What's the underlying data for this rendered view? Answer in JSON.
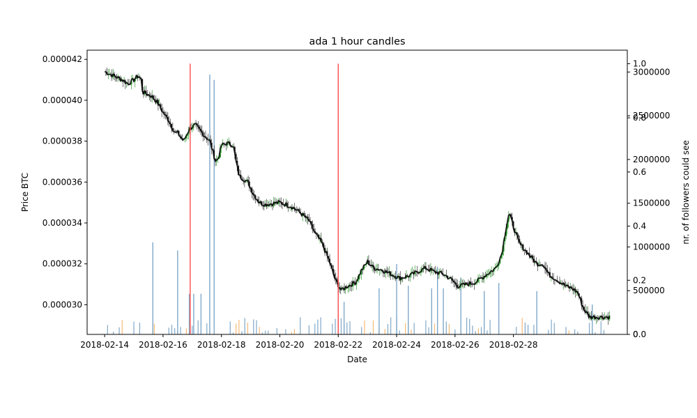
{
  "chart_data": {
    "type": "candlestick",
    "title": "ada 1 hour candles",
    "xlabel": "Date",
    "ylabel": "Price BTC",
    "ylabel_right": "nr. of followers could see",
    "x_tick_labels": [
      "2018-02-14",
      "2018-02-16",
      "2018-02-18",
      "2018-02-20",
      "2018-02-22",
      "2018-02-24",
      "2018-02-26",
      "2018-02-28"
    ],
    "xlim_days_from_2018_02_14": [
      -0.6,
      17.9
    ],
    "ylim": [
      2.855e-05,
      4.245e-05
    ],
    "y_tick_labels": [
      "0.000030",
      "0.000032",
      "0.000034",
      "0.000036",
      "0.000038",
      "0.000040",
      "0.000042"
    ],
    "y_tick_values": [
      3e-05,
      3.2e-05,
      3.4e-05,
      3.6e-05,
      3.8e-05,
      4e-05,
      4.2e-05
    ],
    "right_axis_1": {
      "ylim": [
        0,
        3250000
      ],
      "tick_labels": [
        "0",
        "500000",
        "1000000",
        "1500000",
        "2000000",
        "2500000",
        "3000000"
      ],
      "tick_values": [
        0,
        500000,
        1000000,
        1500000,
        2000000,
        2500000,
        3000000
      ]
    },
    "right_axis_2": {
      "ylim": [
        0,
        1.05
      ],
      "tick_labels": [
        "0.0",
        "0.2",
        "0.4",
        "0.6",
        "0.8",
        "1.0"
      ],
      "tick_values": [
        0.0,
        0.2,
        0.4,
        0.6,
        0.8,
        1.0
      ]
    },
    "signal_lines_days": [
      2.93,
      8.0
    ],
    "close_keypoints": [
      [
        0.0,
        4.14e-05
      ],
      [
        0.3,
        4.12e-05
      ],
      [
        0.6,
        4.1e-05
      ],
      [
        0.8,
        4.08e-05
      ],
      [
        1.0,
        4.1e-05
      ],
      [
        1.15,
        4.12e-05
      ],
      [
        1.25,
        4.1e-05
      ],
      [
        1.3,
        4.04e-05
      ],
      [
        1.6,
        4.02e-05
      ],
      [
        1.8,
        3.99e-05
      ],
      [
        2.0,
        3.94e-05
      ],
      [
        2.2,
        3.9e-05
      ],
      [
        2.4,
        3.84e-05
      ],
      [
        2.5,
        3.84e-05
      ],
      [
        2.7,
        3.8e-05
      ],
      [
        2.9,
        3.86e-05
      ],
      [
        3.1,
        3.88e-05
      ],
      [
        3.4,
        3.83e-05
      ],
      [
        3.6,
        3.8e-05
      ],
      [
        3.8,
        3.7e-05
      ],
      [
        3.9,
        3.72e-05
      ],
      [
        4.0,
        3.78e-05
      ],
      [
        4.2,
        3.79e-05
      ],
      [
        4.4,
        3.78e-05
      ],
      [
        4.5,
        3.7e-05
      ],
      [
        4.6,
        3.63e-05
      ],
      [
        4.9,
        3.6e-05
      ],
      [
        5.1,
        3.54e-05
      ],
      [
        5.3,
        3.5e-05
      ],
      [
        5.5,
        3.49e-05
      ],
      [
        6.0,
        3.5e-05
      ],
      [
        6.4,
        3.48e-05
      ],
      [
        6.7,
        3.45e-05
      ],
      [
        7.0,
        3.41e-05
      ],
      [
        7.2,
        3.35e-05
      ],
      [
        7.4,
        3.31e-05
      ],
      [
        7.5,
        3.28e-05
      ],
      [
        7.7,
        3.21e-05
      ],
      [
        7.9,
        3.12e-05
      ],
      [
        8.1,
        3.07e-05
      ],
      [
        8.3,
        3.09e-05
      ],
      [
        8.6,
        3.11e-05
      ],
      [
        8.8,
        3.17e-05
      ],
      [
        9.0,
        3.21e-05
      ],
      [
        9.2,
        3.18e-05
      ],
      [
        9.5,
        3.17e-05
      ],
      [
        9.8,
        3.15e-05
      ],
      [
        10.1,
        3.13e-05
      ],
      [
        10.4,
        3.14e-05
      ],
      [
        10.7,
        3.16e-05
      ],
      [
        11.0,
        3.18e-05
      ],
      [
        11.3,
        3.16e-05
      ],
      [
        11.6,
        3.15e-05
      ],
      [
        11.9,
        3.12e-05
      ],
      [
        12.1,
        3.09e-05
      ],
      [
        12.4,
        3.1e-05
      ],
      [
        12.7,
        3.11e-05
      ],
      [
        13.0,
        3.14e-05
      ],
      [
        13.2,
        3.16e-05
      ],
      [
        13.4,
        3.18e-05
      ],
      [
        13.6,
        3.25e-05
      ],
      [
        13.75,
        3.38e-05
      ],
      [
        13.85,
        3.45e-05
      ],
      [
        14.0,
        3.38e-05
      ],
      [
        14.2,
        3.3e-05
      ],
      [
        14.5,
        3.25e-05
      ],
      [
        14.8,
        3.2e-05
      ],
      [
        15.0,
        3.2e-05
      ],
      [
        15.2,
        3.15e-05
      ],
      [
        15.5,
        3.12e-05
      ],
      [
        15.8,
        3.09e-05
      ],
      [
        16.0,
        3.08e-05
      ],
      [
        16.2,
        3.06e-05
      ],
      [
        16.4,
        2.98e-05
      ],
      [
        16.6,
        2.94e-05
      ],
      [
        17.0,
        2.94e-05
      ],
      [
        17.3,
        2.94e-05
      ]
    ],
    "volume_spikes": [
      [
        1.65,
        0.34
      ],
      [
        2.5,
        0.31
      ],
      [
        3.6,
        0.96
      ],
      [
        3.75,
        0.94
      ],
      [
        10.0,
        0.26
      ],
      [
        10.4,
        0.18
      ],
      [
        11.2,
        0.17
      ],
      [
        11.4,
        0.25
      ],
      [
        11.6,
        0.17
      ],
      [
        12.2,
        0.21
      ],
      [
        13.0,
        0.16
      ],
      [
        13.5,
        0.19
      ],
      [
        14.8,
        0.16
      ],
      [
        16.7,
        0.11
      ],
      [
        8.0,
        0.19
      ],
      [
        8.2,
        0.12
      ],
      [
        9.4,
        0.17
      ],
      [
        2.9,
        0.15
      ],
      [
        3.05,
        0.15
      ],
      [
        3.3,
        0.15
      ]
    ]
  }
}
